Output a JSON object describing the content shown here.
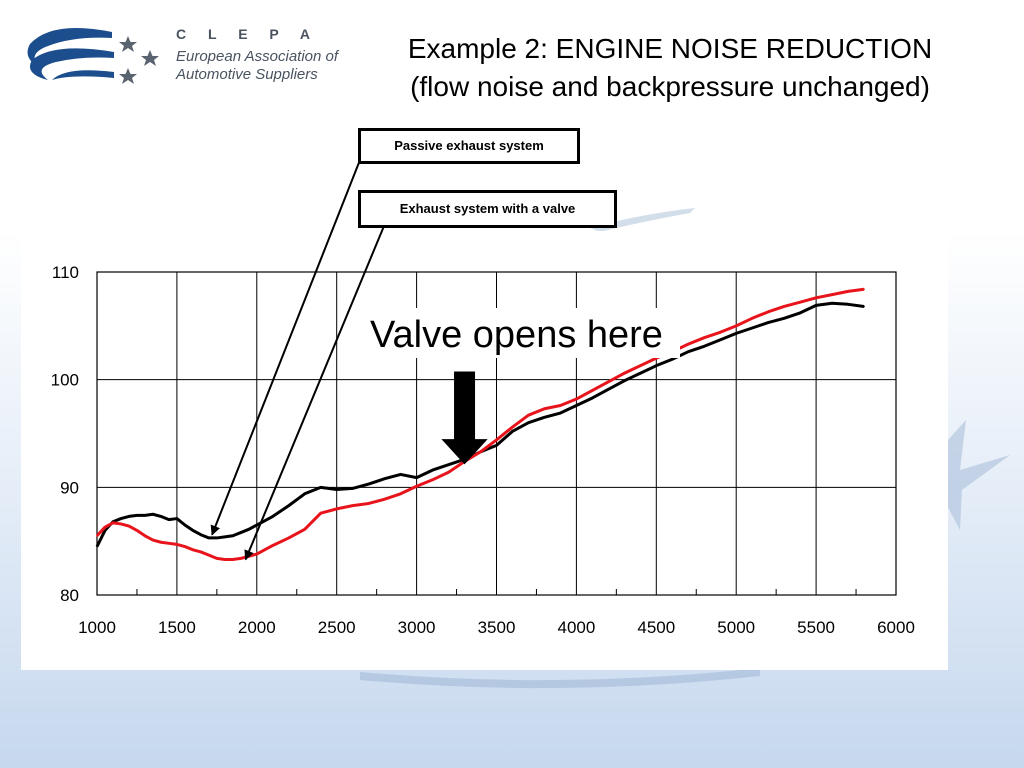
{
  "slide": {
    "title_line1": "Example 2: ENGINE NOISE REDUCTION",
    "title_line2": "(flow noise and backpressure unchanged)"
  },
  "logo": {
    "name": "C L E P A",
    "subtitle_line1": "European Association of",
    "subtitle_line2": "Automotive Suppliers"
  },
  "callouts": {
    "passive": "Passive exhaust system",
    "valve": "Exhaust system with a valve"
  },
  "annotation": {
    "valve_opens": "Valve opens here",
    "valve_opens_rpm": 3300
  },
  "colors": {
    "passive": "#000000",
    "valve": "#e8141c",
    "logo_blue": "#1c4d8c"
  },
  "chart_data": {
    "type": "line",
    "title": "",
    "xlabel": "",
    "ylabel": "",
    "xlim": [
      1000,
      6000
    ],
    "ylim": [
      80,
      110
    ],
    "grid": true,
    "x_ticks": [
      "1000",
      "1500",
      "2000",
      "2500",
      "3000",
      "3500",
      "4000",
      "4500",
      "5000",
      "5500",
      "6000"
    ],
    "y_ticks": [
      "80",
      "90",
      "100",
      "110"
    ],
    "x": [
      1000,
      1050,
      1100,
      1150,
      1200,
      1250,
      1300,
      1350,
      1400,
      1450,
      1500,
      1550,
      1600,
      1650,
      1700,
      1750,
      1800,
      1850,
      1900,
      1950,
      2000,
      2100,
      2200,
      2300,
      2400,
      2500,
      2600,
      2700,
      2800,
      2900,
      3000,
      3100,
      3200,
      3300,
      3400,
      3500,
      3600,
      3700,
      3800,
      3900,
      4000,
      4100,
      4200,
      4300,
      4400,
      4500,
      4600,
      4700,
      4800,
      4900,
      5000,
      5100,
      5200,
      5300,
      5400,
      5500,
      5600,
      5700,
      5800
    ],
    "series": [
      {
        "key": "passive",
        "values": [
          84.5,
          86.0,
          86.8,
          87.1,
          87.3,
          87.4,
          87.4,
          87.5,
          87.3,
          87.0,
          87.1,
          86.5,
          86.0,
          85.6,
          85.3,
          85.3,
          85.4,
          85.5,
          85.8,
          86.1,
          86.5,
          87.3,
          88.3,
          89.4,
          90.0,
          89.8,
          89.9,
          90.3,
          90.8,
          91.2,
          90.9,
          91.6,
          92.1,
          92.6,
          93.3,
          93.9,
          95.2,
          96.0,
          96.5,
          96.9,
          97.6,
          98.3,
          99.1,
          99.9,
          100.6,
          101.3,
          101.9,
          102.6,
          103.1,
          103.7,
          104.3,
          104.8,
          105.3,
          105.7,
          106.2,
          106.9,
          107.1,
          107.0,
          106.8
        ]
      },
      {
        "key": "valve",
        "values": [
          85.5,
          86.3,
          86.7,
          86.6,
          86.4,
          86.0,
          85.5,
          85.1,
          84.9,
          84.8,
          84.7,
          84.5,
          84.2,
          84.0,
          83.7,
          83.4,
          83.3,
          83.3,
          83.4,
          83.6,
          83.8,
          84.6,
          85.3,
          86.1,
          87.6,
          88.0,
          88.3,
          88.5,
          88.9,
          89.4,
          90.1,
          90.7,
          91.4,
          92.4,
          93.3,
          94.4,
          95.6,
          96.7,
          97.3,
          97.6,
          98.2,
          99.0,
          99.8,
          100.6,
          101.3,
          102.0,
          102.6,
          103.3,
          103.9,
          104.4,
          105.0,
          105.7,
          106.3,
          106.8,
          107.2,
          107.6,
          107.9,
          108.2,
          108.4
        ]
      }
    ]
  }
}
